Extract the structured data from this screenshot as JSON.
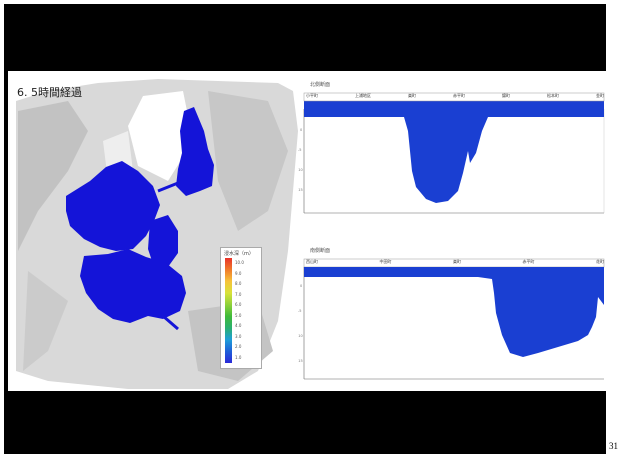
{
  "slide": {
    "title": "6. 5時間経過",
    "page_number": "31"
  },
  "legend": {
    "title": "浸水深（m）",
    "ticks": [
      "10.0",
      "9.0",
      "8.0",
      "7.0",
      "6.0",
      "5.0",
      "4.0",
      "3.0",
      "2.0",
      "1.0",
      "0.0"
    ],
    "colors": [
      "#e8322a",
      "#f07a2a",
      "#f6c33a",
      "#d8e23a",
      "#8fd13a",
      "#3fba3a",
      "#2ab070",
      "#1e9ed8",
      "#1e5fd8",
      "#2a2ad8"
    ]
  },
  "profile_top": {
    "title": "北側断面",
    "place_labels": [
      "小平町",
      "上浦地区",
      "楽町",
      "赤平町",
      "錦町",
      "松本町",
      "金町"
    ],
    "fill_color": "#1a3fd2"
  },
  "profile_bottom": {
    "title": "南側断面",
    "place_labels": [
      "西山町",
      "中田町",
      "楽町",
      "赤平町",
      "花町"
    ],
    "fill_color": "#1a3fd2"
  }
}
